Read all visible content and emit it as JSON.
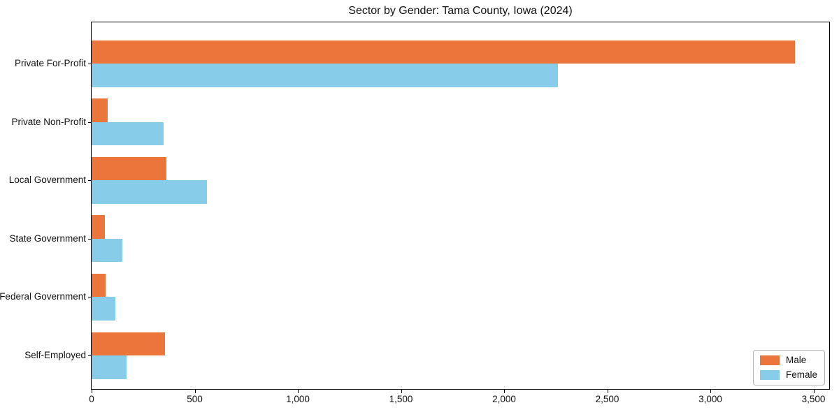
{
  "title": "Sector by Gender: Tama County, Iowa (2024)",
  "chart_data": {
    "type": "bar",
    "orientation": "horizontal",
    "title": "Sector by Gender: Tama County, Iowa (2024)",
    "xlabel": "",
    "ylabel": "",
    "categories": [
      "Private For-Profit",
      "Private Non-Profit",
      "Local Government",
      "State Government",
      "Federal Government",
      "Self-Employed"
    ],
    "series": [
      {
        "name": "Male",
        "color": "#EC753B",
        "values": [
          3410,
          79,
          362,
          64,
          68,
          356
        ]
      },
      {
        "name": "Female",
        "color": "#87CDE9",
        "values": [
          2262,
          350,
          559,
          150,
          116,
          169
        ]
      }
    ],
    "xlim": [
      0,
      3583
    ],
    "xticks": [
      0,
      500,
      1000,
      1500,
      2000,
      2500,
      3000,
      3500
    ],
    "xtick_labels": [
      "0",
      "500",
      "1,000",
      "1,500",
      "2,000",
      "2,500",
      "3,000",
      "3,500"
    ],
    "grid": false,
    "legend_position": "lower right",
    "legend_labels": [
      "Male",
      "Female"
    ]
  }
}
